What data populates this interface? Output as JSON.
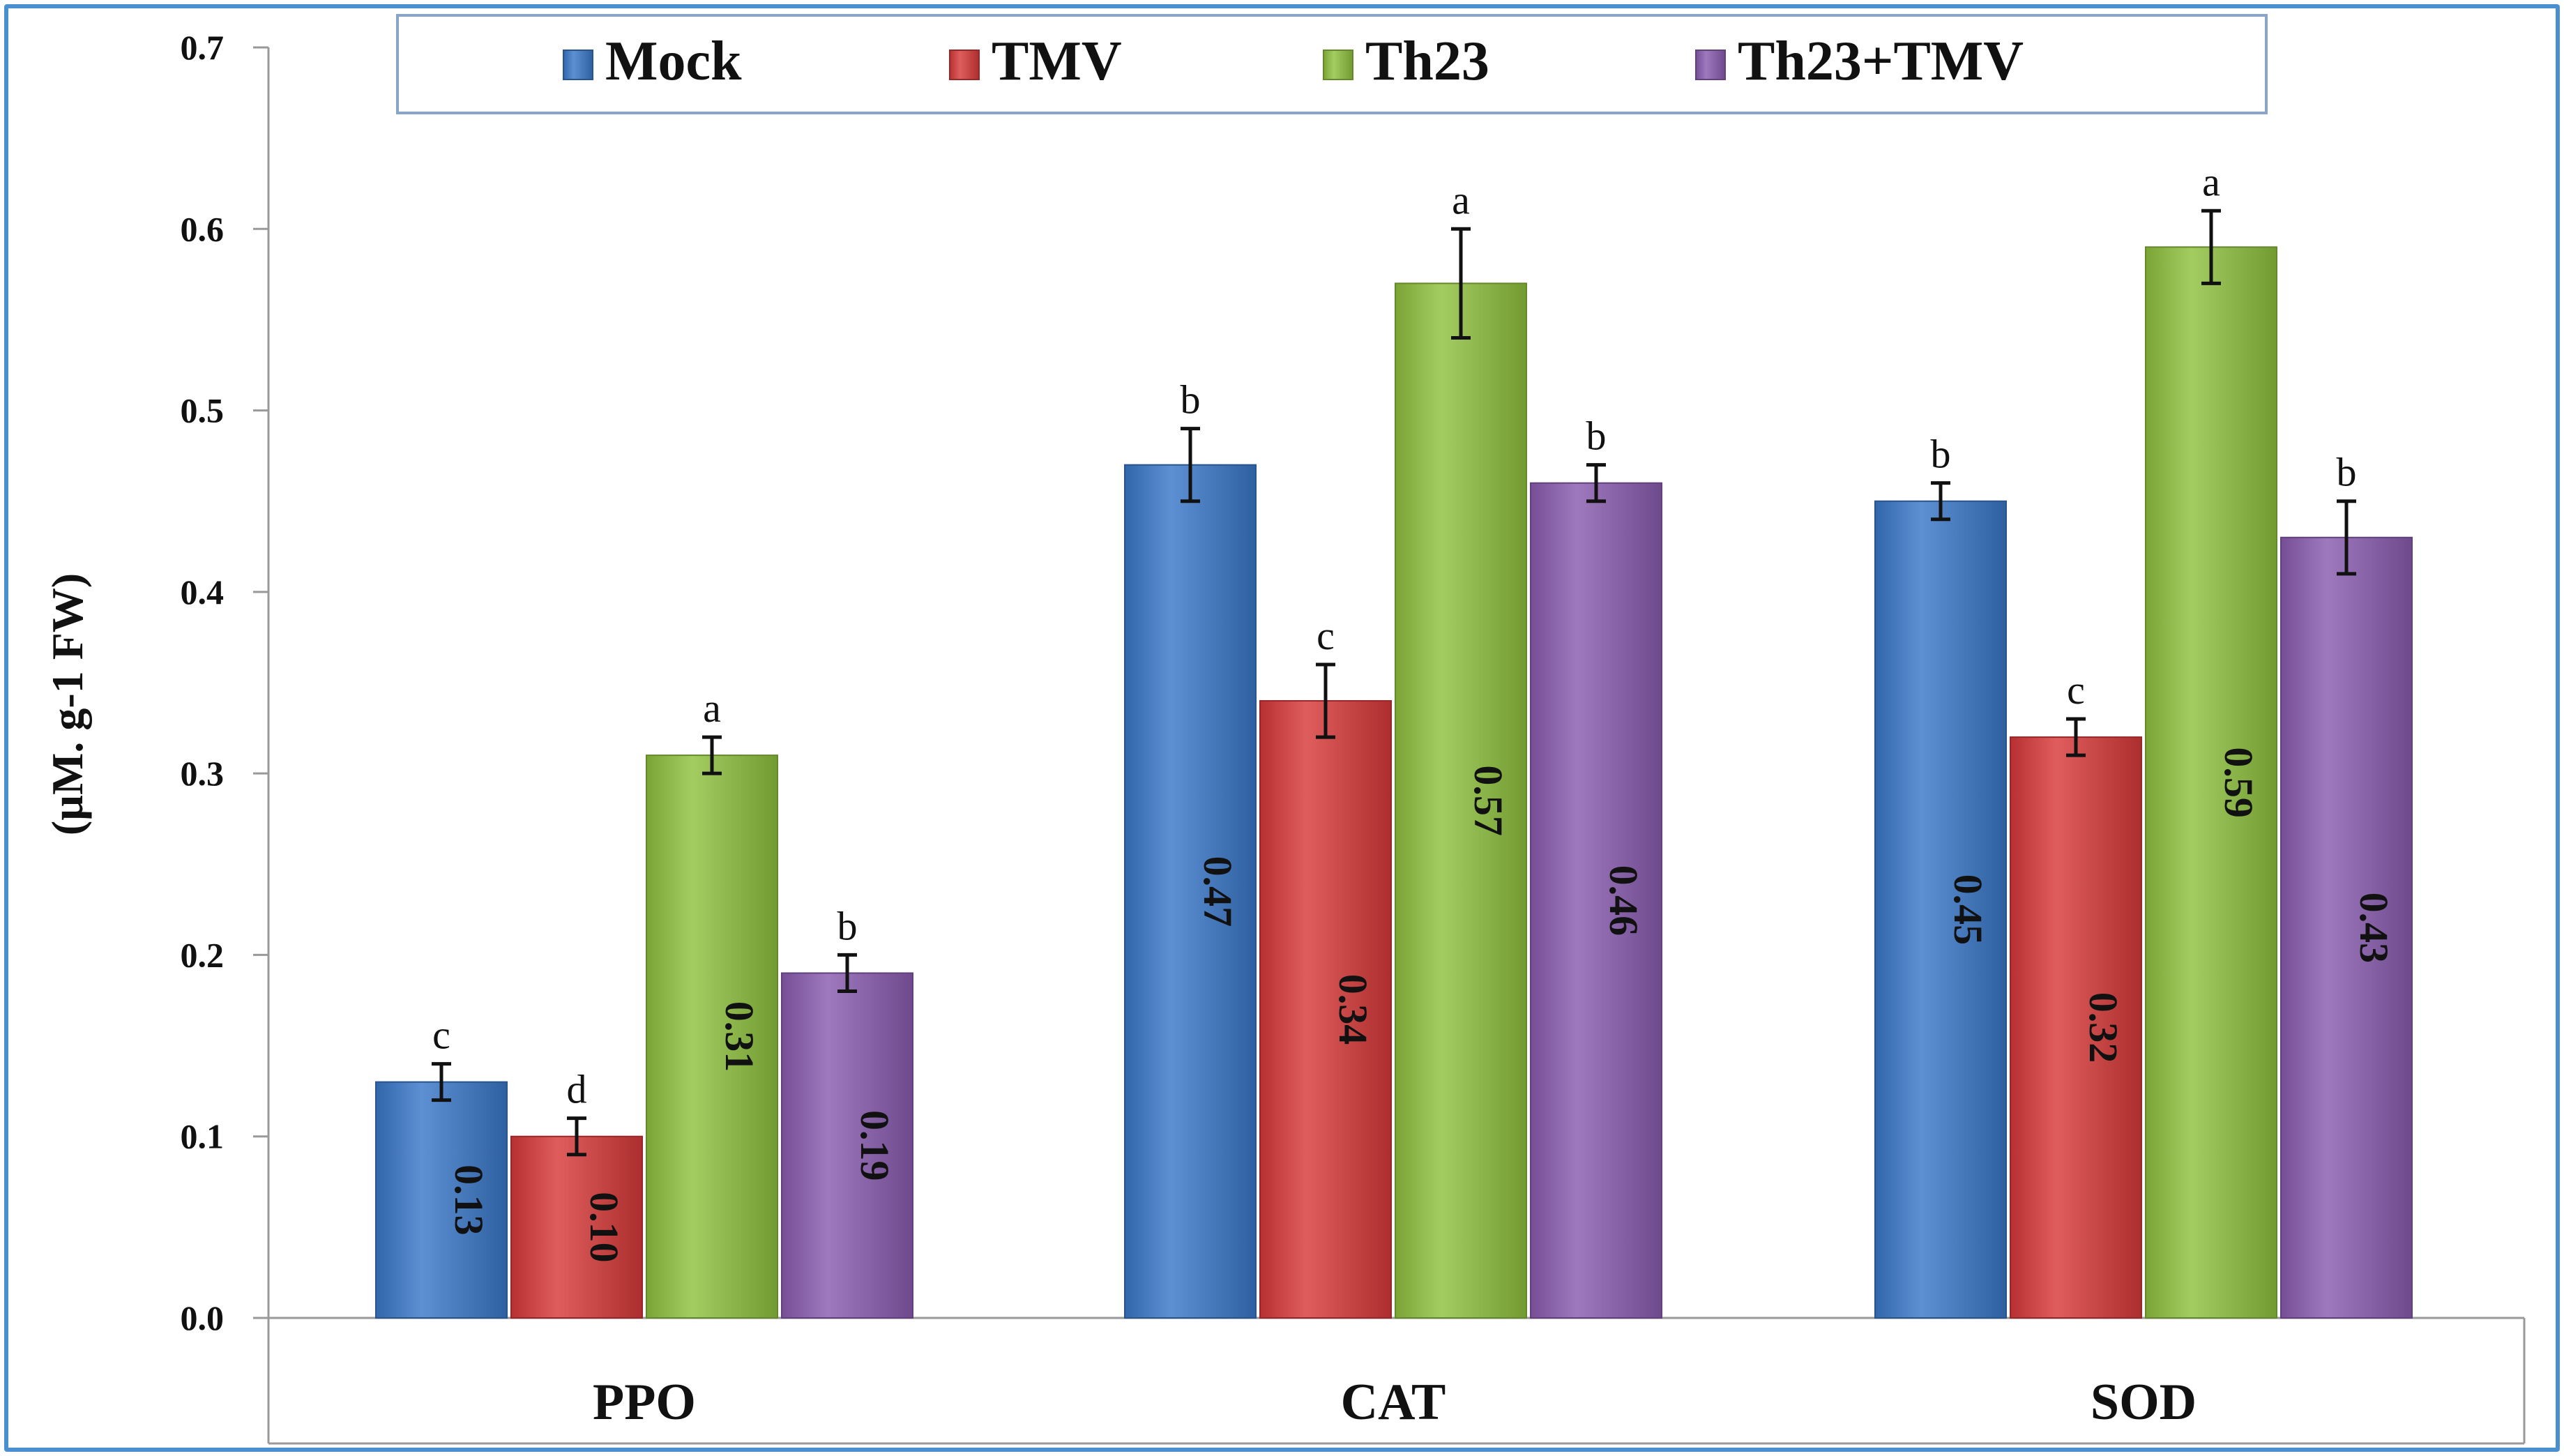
{
  "chart_data": {
    "type": "bar",
    "title": "",
    "xlabel": "",
    "ylabel": "(µM. g-1 FW)",
    "ylim": [
      0,
      0.7
    ],
    "yticks": [
      "0.0",
      "0.1",
      "0.2",
      "0.3",
      "0.4",
      "0.5",
      "0.6",
      "0.7"
    ],
    "categories": [
      "PPO",
      "CAT",
      "SOD"
    ],
    "legend_position": "top",
    "series": [
      {
        "name": "Mock",
        "color": "#3a78c9",
        "values": [
          0.13,
          0.47,
          0.45
        ],
        "labels": [
          "0.13",
          "0.47",
          "0.45"
        ],
        "errors": [
          0.01,
          0.02,
          0.01
        ],
        "letters": [
          "c",
          "b",
          "b"
        ]
      },
      {
        "name": "TMV",
        "color": "#d8393a",
        "values": [
          0.1,
          0.34,
          0.32
        ],
        "labels": [
          "0.10",
          "0.34",
          "0.32"
        ],
        "errors": [
          0.01,
          0.02,
          0.01
        ],
        "letters": [
          "d",
          "c",
          "c"
        ]
      },
      {
        "name": "Th23",
        "color": "#8fc23e",
        "values": [
          0.31,
          0.57,
          0.59
        ],
        "labels": [
          "0.31",
          "0.57",
          "0.59"
        ],
        "errors": [
          0.01,
          0.03,
          0.02
        ],
        "letters": [
          "a",
          "a",
          "a"
        ]
      },
      {
        "name": "Th23+TMV",
        "color": "#8a5cb0",
        "values": [
          0.19,
          0.46,
          0.43
        ],
        "labels": [
          "0.19",
          "0.46",
          "0.43"
        ],
        "errors": [
          0.01,
          0.01,
          0.02
        ],
        "letters": [
          "b",
          "b",
          "b"
        ]
      }
    ]
  }
}
